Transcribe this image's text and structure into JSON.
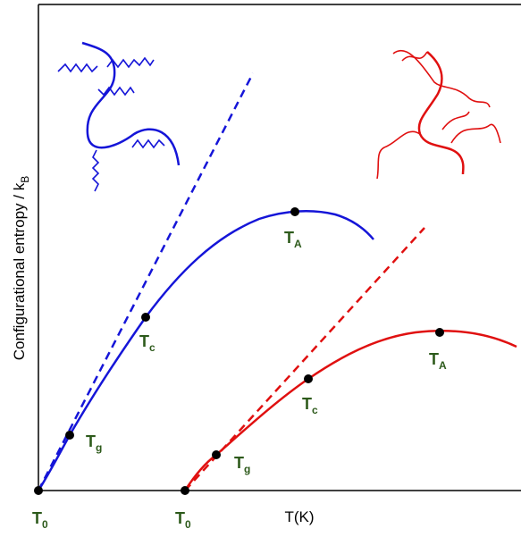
{
  "x_label": "T(K)",
  "y_label": {
    "main": "Configurational entropy / k",
    "sub": "B"
  },
  "blue_points": [
    {
      "main": "T",
      "sub": "0"
    },
    {
      "main": "T",
      "sub": "g"
    },
    {
      "main": "T",
      "sub": "c"
    },
    {
      "main": "T",
      "sub": "A"
    }
  ],
  "red_points": [
    {
      "main": "T",
      "sub": "0"
    },
    {
      "main": "T",
      "sub": "g"
    },
    {
      "main": "T",
      "sub": "c"
    },
    {
      "main": "T",
      "sub": "A"
    }
  ]
}
